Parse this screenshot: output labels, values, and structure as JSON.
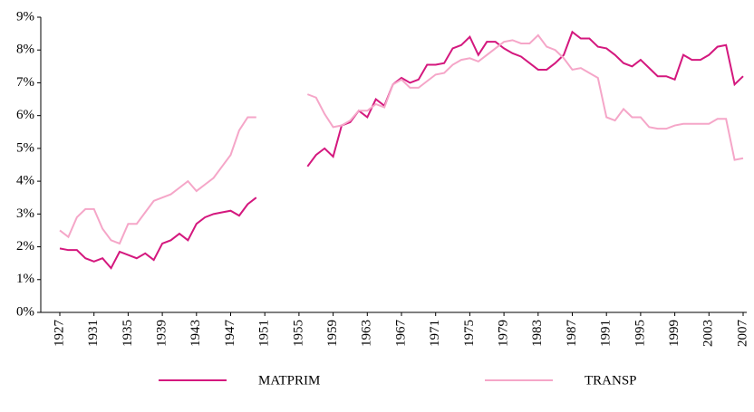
{
  "chart_data": {
    "type": "line",
    "x": [
      1927,
      1928,
      1929,
      1930,
      1931,
      1932,
      1933,
      1934,
      1935,
      1936,
      1937,
      1938,
      1939,
      1940,
      1941,
      1942,
      1943,
      1944,
      1945,
      1946,
      1947,
      1948,
      1949,
      1950,
      1951,
      1952,
      1953,
      1954,
      1955,
      1956,
      1957,
      1958,
      1959,
      1960,
      1961,
      1962,
      1963,
      1964,
      1965,
      1966,
      1967,
      1968,
      1969,
      1970,
      1971,
      1972,
      1973,
      1974,
      1975,
      1976,
      1977,
      1978,
      1979,
      1980,
      1981,
      1982,
      1983,
      1984,
      1985,
      1986,
      1987,
      1988,
      1989,
      1990,
      1991,
      1992,
      1993,
      1994,
      1995,
      1996,
      1997,
      1998,
      1999,
      2000,
      2001,
      2002,
      2003,
      2004,
      2005,
      2006,
      2007
    ],
    "series": [
      {
        "name": "MATPRIM",
        "color": "#d4187e",
        "values": [
          1.95,
          1.9,
          1.9,
          1.65,
          1.55,
          1.65,
          1.35,
          1.85,
          1.75,
          1.65,
          1.8,
          1.6,
          2.1,
          2.2,
          2.4,
          2.2,
          2.7,
          2.9,
          3.0,
          3.05,
          3.1,
          2.95,
          3.3,
          3.5,
          null,
          null,
          null,
          null,
          null,
          4.45,
          4.8,
          5.0,
          4.75,
          5.7,
          5.8,
          6.15,
          5.95,
          6.5,
          6.3,
          6.95,
          7.15,
          7.0,
          7.1,
          7.55,
          7.55,
          7.6,
          8.05,
          8.15,
          8.4,
          7.85,
          8.25,
          8.25,
          8.05,
          7.9,
          7.8,
          7.6,
          7.4,
          7.4,
          7.6,
          7.85,
          8.55,
          8.35,
          8.35,
          8.1,
          8.05,
          7.85,
          7.6,
          7.5,
          7.7,
          7.45,
          7.2,
          7.2,
          7.1,
          7.85,
          7.7,
          7.7,
          7.85,
          8.1,
          8.15,
          6.95,
          7.2
        ]
      },
      {
        "name": "TRANSP",
        "color": "#f5a6c8",
        "values": [
          2.5,
          2.3,
          2.9,
          3.15,
          3.15,
          2.55,
          2.2,
          2.1,
          2.7,
          2.7,
          3.05,
          3.4,
          3.5,
          3.6,
          3.8,
          4.0,
          3.7,
          3.9,
          4.1,
          4.45,
          4.8,
          5.55,
          5.95,
          5.95,
          null,
          null,
          null,
          null,
          null,
          6.65,
          6.55,
          6.05,
          5.65,
          5.7,
          5.85,
          6.15,
          6.15,
          6.35,
          6.25,
          6.95,
          7.1,
          6.85,
          6.85,
          7.05,
          7.25,
          7.3,
          7.55,
          7.7,
          7.75,
          7.65,
          7.85,
          8.05,
          8.25,
          8.3,
          8.2,
          8.2,
          8.45,
          8.1,
          8.0,
          7.75,
          7.4,
          7.45,
          7.3,
          7.15,
          5.95,
          5.85,
          6.2,
          5.95,
          5.95,
          5.65,
          5.6,
          5.6,
          5.7,
          5.75,
          5.75,
          5.75,
          5.75,
          5.9,
          5.9,
          4.65,
          4.7
        ]
      }
    ],
    "xlim": [
      1927,
      2007
    ],
    "xticks": [
      1927,
      1931,
      1935,
      1939,
      1943,
      1947,
      1951,
      1955,
      1959,
      1963,
      1967,
      1971,
      1975,
      1979,
      1983,
      1987,
      1991,
      1995,
      1999,
      2003,
      2007
    ],
    "ylim": [
      0,
      9
    ],
    "yticks": [
      {
        "value": 0,
        "label": "0%"
      },
      {
        "value": 1,
        "label": "1%"
      },
      {
        "value": 2,
        "label": "2%"
      },
      {
        "value": 3,
        "label": "3%"
      },
      {
        "value": 4,
        "label": "4%"
      },
      {
        "value": 5,
        "label": "5%"
      },
      {
        "value": 6,
        "label": "6%"
      },
      {
        "value": 7,
        "label": "7%"
      },
      {
        "value": 8,
        "label": "8%"
      },
      {
        "value": 9,
        "label": "9%"
      }
    ]
  }
}
